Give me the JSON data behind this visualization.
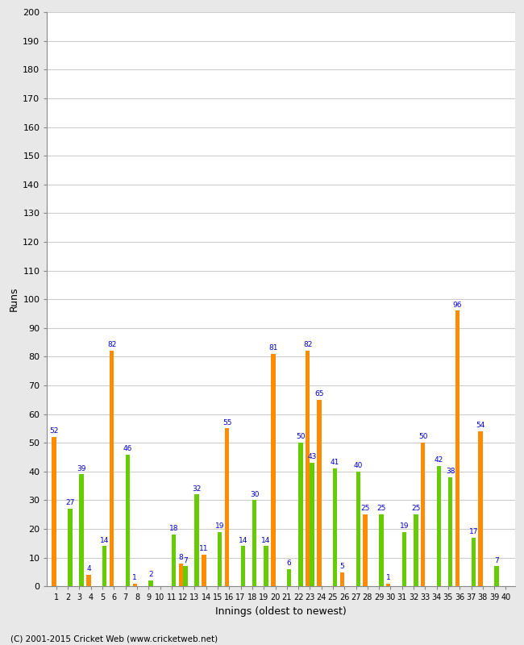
{
  "innings": [
    1,
    2,
    3,
    4,
    5,
    6,
    7,
    8,
    9,
    10,
    11,
    12,
    13,
    14,
    15,
    16,
    17,
    18,
    19,
    20,
    21,
    22,
    23,
    24,
    25,
    26,
    27,
    28,
    29,
    30,
    31,
    32,
    33,
    34,
    35,
    36,
    37,
    38,
    39,
    40
  ],
  "orange_vals": [
    52,
    0,
    0,
    4,
    0,
    82,
    0,
    1,
    0,
    0,
    0,
    8,
    0,
    11,
    0,
    55,
    0,
    0,
    0,
    81,
    0,
    0,
    82,
    65,
    0,
    5,
    0,
    25,
    0,
    1,
    0,
    0,
    50,
    0,
    0,
    96,
    0,
    54,
    0,
    0
  ],
  "green_vals": [
    0,
    27,
    39,
    0,
    14,
    0,
    46,
    0,
    2,
    0,
    18,
    7,
    32,
    0,
    19,
    0,
    14,
    30,
    14,
    0,
    6,
    50,
    43,
    0,
    41,
    0,
    40,
    0,
    25,
    0,
    19,
    25,
    0,
    42,
    38,
    0,
    17,
    0,
    7,
    0
  ],
  "labels_orange": [
    52,
    null,
    null,
    4,
    null,
    82,
    null,
    1,
    null,
    null,
    null,
    8,
    null,
    11,
    null,
    55,
    null,
    null,
    null,
    81,
    null,
    null,
    82,
    65,
    null,
    5,
    null,
    25,
    null,
    1,
    null,
    null,
    50,
    null,
    null,
    96,
    null,
    54,
    null,
    null
  ],
  "labels_green": [
    null,
    27,
    39,
    null,
    14,
    null,
    46,
    null,
    2,
    null,
    18,
    7,
    32,
    null,
    19,
    null,
    14,
    30,
    14,
    null,
    6,
    50,
    43,
    null,
    41,
    null,
    40,
    null,
    25,
    null,
    19,
    25,
    null,
    42,
    38,
    null,
    17,
    null,
    7,
    null
  ],
  "orange_color": "#FF8C00",
  "green_color": "#66CC00",
  "plot_bg_color": "#FFFFFF",
  "fig_bg_color": "#E8E8E8",
  "grid_color": "#CCCCCC",
  "ylabel": "Runs",
  "xlabel": "Innings (oldest to newest)",
  "ylim": [
    0,
    200
  ],
  "yticks": [
    0,
    10,
    20,
    30,
    40,
    50,
    60,
    70,
    80,
    90,
    100,
    110,
    120,
    130,
    140,
    150,
    160,
    170,
    180,
    190,
    200
  ],
  "footer": "(C) 2001-2015 Cricket Web (www.cricketweb.net)",
  "label_color": "#0000CC",
  "figsize": [
    6.5,
    8.0
  ],
  "dpi": 100
}
